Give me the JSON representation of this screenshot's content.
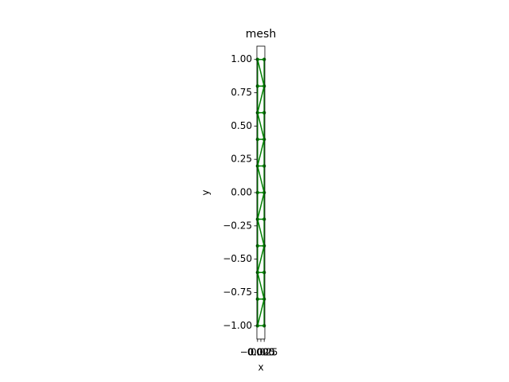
{
  "chart_data": {
    "type": "mesh",
    "title": "mesh",
    "x_label": "x",
    "y_label": "y",
    "color": "#008000",
    "series": [
      {
        "name": null,
        "color": "#008000",
        "x": [
          -0.025,
          -0.025,
          -0.025,
          -0.025,
          -0.025,
          -0.025,
          -0.025,
          -0.025,
          -0.025,
          -0.025,
          -0.025,
          0.025,
          0.025,
          0.025,
          0.025,
          0.025,
          0.025,
          0.025,
          0.025,
          0.025,
          0.025,
          0.025
        ],
        "values": [
          -1,
          -0.8,
          -0.6,
          -0.4,
          -0.2,
          0,
          0.2,
          0.4,
          0.6,
          0.8,
          1,
          -1,
          -0.8,
          -0.6,
          -0.4,
          -0.2,
          0,
          0.2,
          0.4,
          0.6,
          0.8,
          1
        ]
      }
    ],
    "xlim": [
      -0.03,
      0.03
    ],
    "ylim": [
      -1.1,
      1.1
    ],
    "xticks": [
      {
        "value": -0.025,
        "label": "−0.025"
      },
      {
        "value": 0,
        "label": "0.000"
      },
      {
        "value": 0.025,
        "label": "0.025"
      }
    ],
    "yticks": [
      {
        "value": -1,
        "label": "−1.00"
      },
      {
        "value": -0.75,
        "label": "−0.75"
      },
      {
        "value": -0.5,
        "label": "−0.50"
      },
      {
        "value": -0.25,
        "label": "−0.25"
      },
      {
        "value": 0,
        "label": "0.00"
      },
      {
        "value": 0.25,
        "label": "0.25"
      },
      {
        "value": 0.5,
        "label": "0.50"
      },
      {
        "value": 0.75,
        "label": "0.75"
      },
      {
        "value": 1,
        "label": "1.00"
      }
    ]
  }
}
